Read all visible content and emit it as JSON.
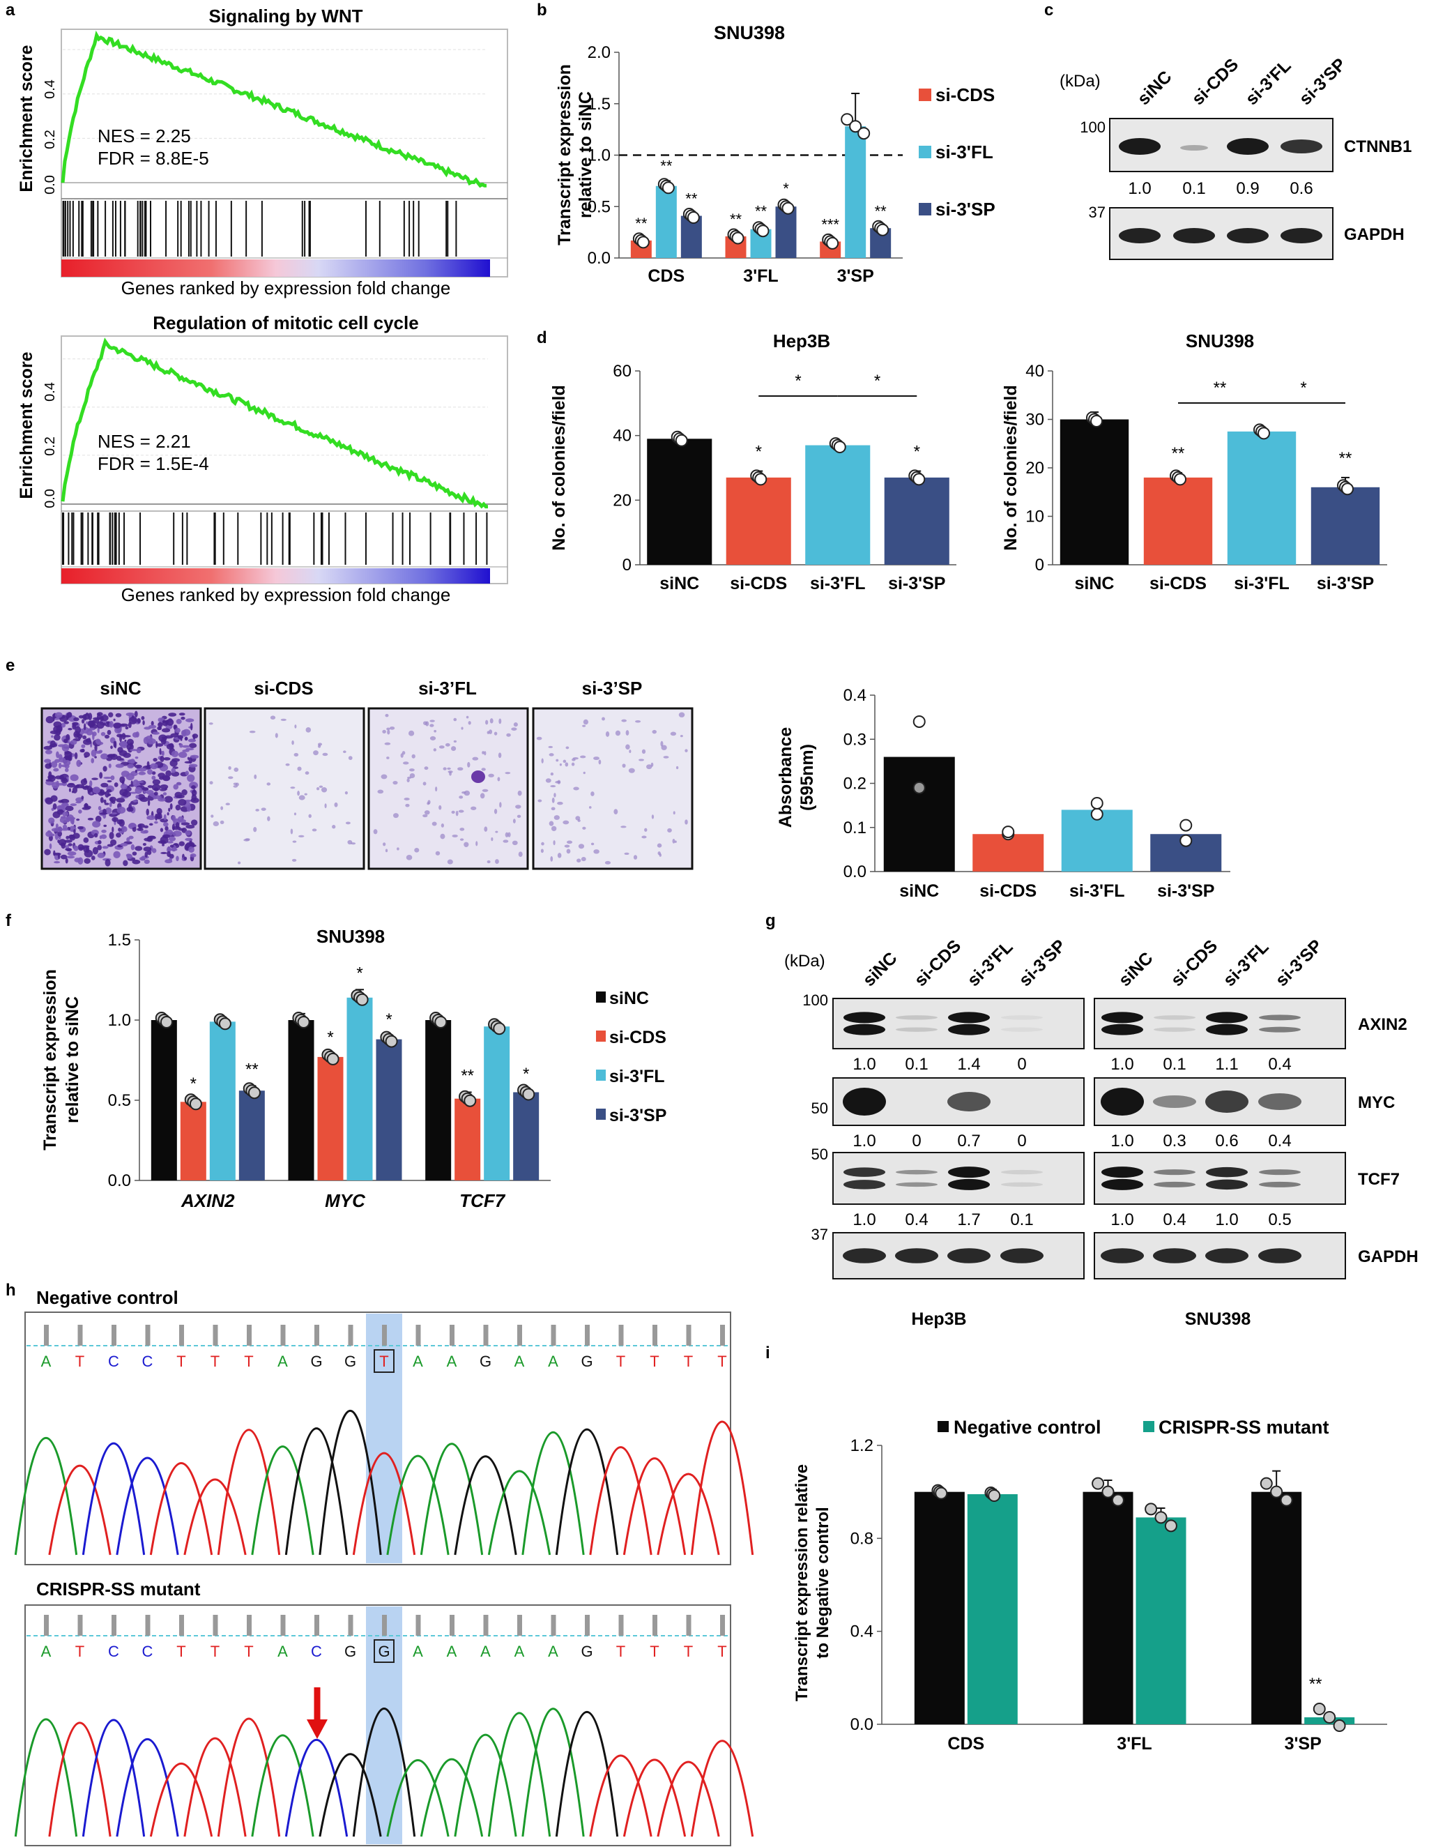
{
  "colors": {
    "black": "#0a0a0a",
    "red": "#e8503a",
    "cyan": "#4dbcd8",
    "navy": "#3a4f85",
    "teal": "#15a08a",
    "gsea": "#33dd22"
  },
  "panel_letters": [
    "a",
    "b",
    "c",
    "d",
    "e",
    "f",
    "g",
    "h",
    "i"
  ],
  "a": {
    "plots": [
      {
        "title": "Signaling by WNT",
        "nes": "NES = 2.25",
        "fdr": "FDR = 8.8E-5",
        "ylabel": "Enrichment score",
        "xlabel": "Genes ranked by expression fold change"
      },
      {
        "title": "Regulation of mitotic cell cycle",
        "nes": "NES = 2.21",
        "fdr": "FDR = 1.5E-4",
        "ylabel": "Enrichment score",
        "xlabel": "Genes ranked by expression fold change"
      }
    ]
  },
  "c": {
    "kda": "(kDa)",
    "lanes": [
      "siNC",
      "si-CDS",
      "si-3'FL",
      "si-3'SP"
    ],
    "blots": [
      {
        "name": "CTNNB1",
        "marker": "100",
        "quant": [
          "1.0",
          "0.1",
          "0.9",
          "0.6"
        ]
      },
      {
        "name": "GAPDH",
        "marker": "37",
        "quant": []
      }
    ]
  },
  "e": {
    "images": [
      "siNC",
      "si-CDS",
      "si-3’FL",
      "si-3’SP"
    ]
  },
  "g": {
    "kda": "(kDa)",
    "lanes": [
      "siNC",
      "si-CDS",
      "si-3'FL",
      "si-3'SP"
    ],
    "cells": [
      "Hep3B",
      "SNU398"
    ],
    "blots": [
      {
        "name": "AXIN2",
        "marker": "100",
        "quant_left": [
          "1.0",
          "0.1",
          "1.4",
          "0"
        ],
        "quant_right": [
          "1.0",
          "0.1",
          "1.1",
          "0.4"
        ]
      },
      {
        "name": "MYC",
        "marker": "50",
        "quant_left": [
          "1.0",
          "0",
          "0.7",
          "0"
        ],
        "quant_right": [
          "1.0",
          "0.3",
          "0.6",
          "0.4"
        ]
      },
      {
        "name": "TCF7",
        "marker": "50",
        "quant_left": [
          "1.0",
          "0.4",
          "1.7",
          "0.1"
        ],
        "quant_right": [
          "1.0",
          "0.4",
          "1.0",
          "0.5"
        ]
      },
      {
        "name": "GAPDH",
        "marker": "37",
        "quant_left": [],
        "quant_right": []
      }
    ]
  },
  "h": {
    "tracks": [
      {
        "title": "Negative control",
        "bases": [
          "A",
          "T",
          "C",
          "C",
          "T",
          "T",
          "T",
          "A",
          "G",
          "G",
          "T",
          "A",
          "A",
          "G",
          "A",
          "A",
          "G",
          "T",
          "T",
          "T",
          "T"
        ]
      },
      {
        "title": "CRISPR-SS mutant",
        "bases": [
          "A",
          "T",
          "C",
          "C",
          "T",
          "T",
          "T",
          "A",
          "C",
          "G",
          "G",
          "A",
          "A",
          "A",
          "A",
          "A",
          "G",
          "T",
          "T",
          "T",
          "T"
        ]
      }
    ]
  },
  "chart_data": [
    {
      "id": "b",
      "type": "bar",
      "title": "SNU398",
      "ylabel": "Transcript expression relative to siNC",
      "categories": [
        "CDS",
        "3'FL",
        "3'SP"
      ],
      "ylim": [
        0,
        2.0
      ],
      "yticks": [
        "0.0",
        "0.5",
        "1.0",
        "1.5",
        "2.0"
      ],
      "reference_line": 1.0,
      "series": [
        {
          "name": "si-CDS",
          "values": [
            0.17,
            0.21,
            0.16
          ],
          "errors": [
            0.02,
            0.02,
            0.02
          ],
          "sig": [
            "**",
            "**",
            "***"
          ]
        },
        {
          "name": "si-3'FL",
          "values": [
            0.7,
            0.28,
            1.28
          ],
          "errors": [
            0.05,
            0.03,
            0.32
          ],
          "sig": [
            "**",
            "**",
            ""
          ]
        },
        {
          "name": "si-3'SP",
          "values": [
            0.41,
            0.5,
            0.29
          ],
          "errors": [
            0.02,
            0.03,
            0.02
          ],
          "sig": [
            "**",
            "*",
            "**"
          ]
        }
      ],
      "legend": "right"
    },
    {
      "id": "d1",
      "type": "bar",
      "title": "Hep3B",
      "ylabel": "No. of colonies/field",
      "categories": [
        "siNC",
        "si-CDS",
        "si-3'FL",
        "si-3'SP"
      ],
      "values": [
        39,
        27,
        37,
        27
      ],
      "errors": [
        0.5,
        2,
        1,
        2
      ],
      "ylim": [
        0,
        60
      ],
      "yticks": [
        "0",
        "20",
        "40",
        "60"
      ],
      "sig": [
        "",
        "*",
        "",
        "*"
      ],
      "brackets": [
        {
          "from": 1,
          "to": 2,
          "label": "*"
        },
        {
          "from": 2,
          "to": 3,
          "label": "*"
        }
      ]
    },
    {
      "id": "d2",
      "type": "bar",
      "title": "SNU398",
      "ylabel": "No. of colonies/field",
      "categories": [
        "siNC",
        "si-CDS",
        "si-3'FL",
        "si-3'SP"
      ],
      "values": [
        30,
        18,
        27.5,
        16
      ],
      "errors": [
        1.5,
        1,
        0.5,
        2
      ],
      "ylim": [
        0,
        40
      ],
      "yticks": [
        "0",
        "10",
        "20",
        "30",
        "40"
      ],
      "sig": [
        "",
        "**",
        "",
        "**"
      ],
      "brackets": [
        {
          "from": 1,
          "to": 2,
          "label": "**"
        },
        {
          "from": 2,
          "to": 3,
          "label": "*"
        }
      ]
    },
    {
      "id": "e",
      "type": "bar",
      "ylabel": "Absorbance (595nm)",
      "categories": [
        "siNC",
        "si-CDS",
        "si-3'FL",
        "si-3'SP"
      ],
      "values": [
        0.26,
        0.085,
        0.14,
        0.085
      ],
      "ylim": [
        0,
        0.4
      ],
      "yticks": [
        "0.0",
        "0.1",
        "0.2",
        "0.3",
        "0.4"
      ]
    },
    {
      "id": "f",
      "type": "bar",
      "title": "SNU398",
      "ylabel": "Transcript expression relative to siNC",
      "categories": [
        "AXIN2",
        "MYC",
        "TCF7"
      ],
      "ylim": [
        0,
        1.5
      ],
      "yticks": [
        "0.0",
        "0.5",
        "1.0",
        "1.5"
      ],
      "series": [
        {
          "name": "siNC",
          "values": [
            1.0,
            1.0,
            1.0
          ],
          "errors": [
            0.01,
            0.04,
            0.02
          ],
          "sig": [
            "",
            "",
            ""
          ]
        },
        {
          "name": "si-CDS",
          "values": [
            0.49,
            0.77,
            0.51
          ],
          "errors": [
            0.01,
            0.02,
            0.04
          ],
          "sig": [
            "*",
            "*",
            "**"
          ]
        },
        {
          "name": "si-3'FL",
          "values": [
            0.99,
            1.14,
            0.96
          ],
          "errors": [
            0.01,
            0.05,
            0.02
          ],
          "sig": [
            "",
            "*",
            ""
          ]
        },
        {
          "name": "si-3'SP",
          "values": [
            0.56,
            0.88,
            0.55
          ],
          "errors": [
            0.03,
            0.02,
            0.01
          ],
          "sig": [
            "**",
            "*",
            "*"
          ]
        }
      ],
      "legend": "right"
    },
    {
      "id": "i",
      "type": "bar",
      "ylabel": "Transcript expression relative to Negative control",
      "categories": [
        "CDS",
        "3'FL",
        "3'SP"
      ],
      "ylim": [
        0,
        1.2
      ],
      "yticks": [
        "0.0",
        "0.4",
        "0.8",
        "1.2"
      ],
      "series": [
        {
          "name": "Negative control",
          "values": [
            1.0,
            1.0,
            1.0
          ],
          "errors": [
            0.01,
            0.05,
            0.09
          ],
          "sig": [
            "",
            "",
            ""
          ]
        },
        {
          "name": "CRISPR-SS mutant",
          "values": [
            0.99,
            0.89,
            0.03
          ],
          "errors": [
            0.02,
            0.04,
            0.005
          ],
          "sig": [
            "",
            "",
            "**"
          ]
        }
      ],
      "legend": "top"
    }
  ]
}
